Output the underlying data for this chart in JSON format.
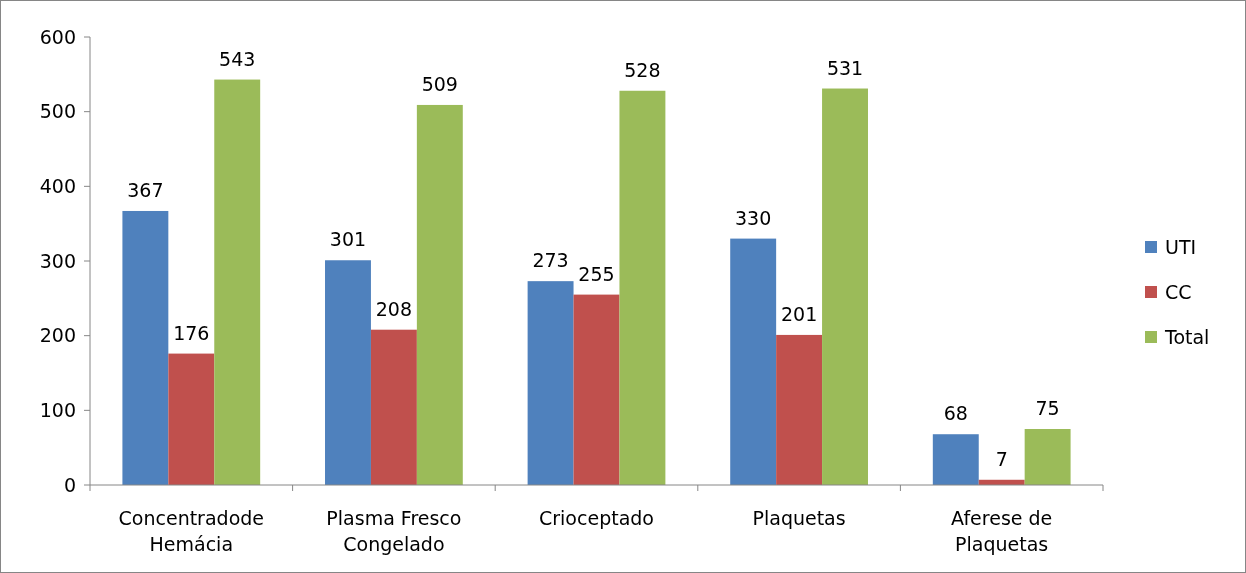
{
  "chart_data": {
    "type": "bar",
    "categories": [
      "Concentradode Hemácia",
      "Plasma Fresco Congelado",
      "Crioceptado",
      "Plaquetas",
      "Aferese de Plaquetas"
    ],
    "series": [
      {
        "name": "UTI",
        "color": "#4f81bd",
        "values": [
          367,
          301,
          273,
          330,
          68
        ]
      },
      {
        "name": "CC",
        "color": "#c0504d",
        "values": [
          176,
          208,
          255,
          201,
          7
        ]
      },
      {
        "name": "Total",
        "color": "#9bbb59",
        "values": [
          543,
          509,
          528,
          531,
          75
        ]
      }
    ],
    "ylim": [
      0,
      600
    ],
    "yticks": [
      0,
      100,
      200,
      300,
      400,
      500,
      600
    ],
    "grid": false,
    "legend": "right",
    "data_labels": true
  }
}
